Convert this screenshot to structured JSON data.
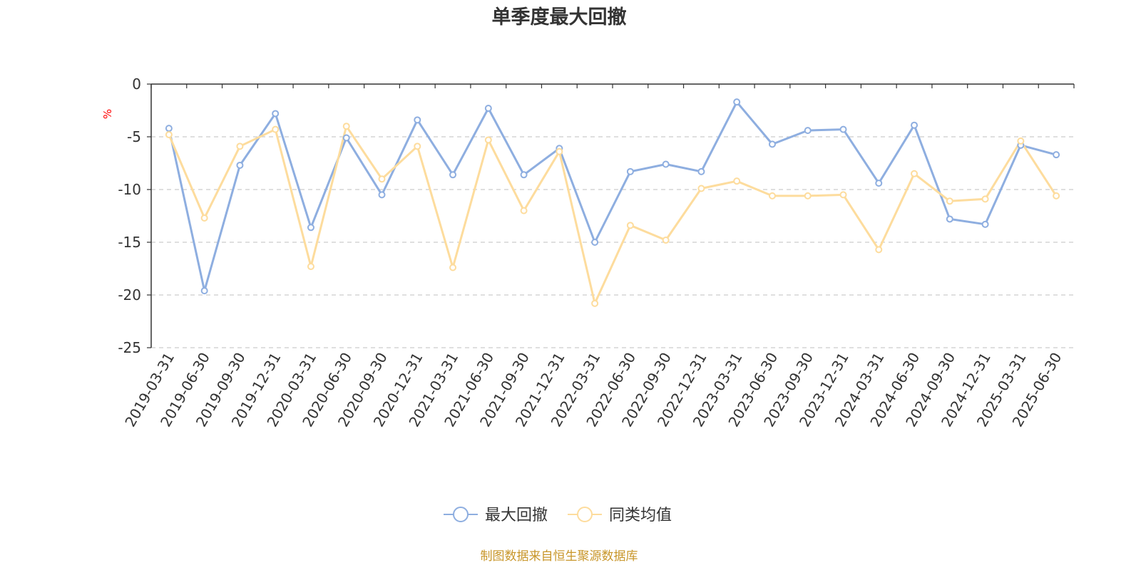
{
  "chart_data": {
    "type": "line",
    "title": "单季度最大回撤",
    "ylabel": "%",
    "ylim": [
      -25,
      0
    ],
    "yticks": [
      0,
      -5,
      -10,
      -15,
      -20,
      -25
    ],
    "grid": true,
    "legend_position": "bottom-center",
    "categories": [
      "2019-03-31",
      "2019-06-30",
      "2019-09-30",
      "2019-12-31",
      "2020-03-31",
      "2020-06-30",
      "2020-09-30",
      "2020-12-31",
      "2021-03-31",
      "2021-06-30",
      "2021-09-30",
      "2021-12-31",
      "2022-03-31",
      "2022-06-30",
      "2022-09-30",
      "2022-12-31",
      "2023-03-31",
      "2023-06-30",
      "2023-09-30",
      "2023-12-31",
      "2024-03-31",
      "2024-06-30",
      "2024-09-30",
      "2024-12-31",
      "2025-03-31",
      "2025-06-30"
    ],
    "series": [
      {
        "name": "最大回撤",
        "color": "#8eaee0",
        "values": [
          -4.2,
          -19.6,
          -7.7,
          -2.8,
          -13.6,
          -5.1,
          -10.5,
          -3.4,
          -8.6,
          -2.3,
          -8.6,
          -6.1,
          -15.0,
          -8.3,
          -7.6,
          -8.3,
          -1.7,
          -5.7,
          -4.4,
          -4.3,
          -9.4,
          -3.9,
          -12.8,
          -13.3,
          -5.8,
          -6.7
        ]
      },
      {
        "name": "同类均值",
        "color": "#fddc9d",
        "values": [
          -4.8,
          -12.7,
          -5.9,
          -4.3,
          -17.3,
          -4.0,
          -9.0,
          -5.9,
          -17.4,
          -5.3,
          -12.0,
          -6.4,
          -20.8,
          -13.4,
          -14.8,
          -9.9,
          -9.2,
          -10.6,
          -10.6,
          -10.5,
          -15.7,
          -8.5,
          -11.1,
          -10.9,
          -5.4,
          -10.6
        ]
      }
    ]
  },
  "source_note": "制图数据来自恒生聚源数据库"
}
